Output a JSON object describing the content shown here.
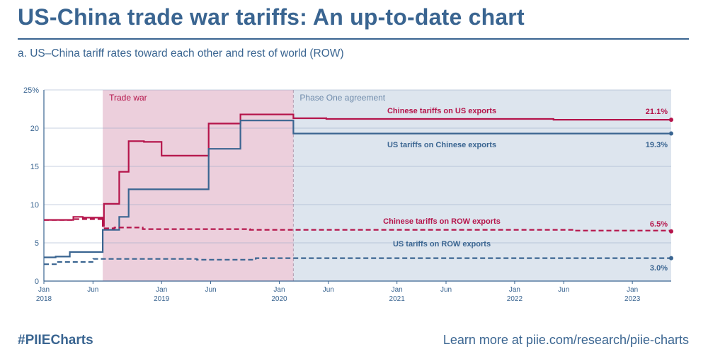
{
  "header": {
    "title": "US-China trade war tariffs: An up-to-date chart",
    "subtitle": "a. US–China tariff rates toward each other and rest of world (ROW)"
  },
  "footer": {
    "hashtag": "#PIIECharts",
    "link_text": "Learn more at piie.com/research/piie-charts"
  },
  "colors": {
    "china": "#b5154b",
    "us": "#3a6591",
    "trade_war_band": "#eccfdc",
    "phase_one_band": "#dde5ee"
  },
  "chart_data": {
    "type": "line",
    "title": "US–China tariff rates toward each other and rest of world (ROW)",
    "xlabel": "",
    "ylabel": "",
    "x_range": [
      2018.0,
      2023.33
    ],
    "ylim": [
      0,
      25
    ],
    "y_ticks": [
      "0",
      "5",
      "10",
      "15",
      "20",
      "25%"
    ],
    "y_tick_values": [
      0,
      5,
      10,
      15,
      20,
      25
    ],
    "grid": true,
    "x_ticks": [
      {
        "x": 2018.0,
        "month": "Jan",
        "year": "2018"
      },
      {
        "x": 2018.417,
        "month": "Jun",
        "year": ""
      },
      {
        "x": 2019.0,
        "month": "Jan",
        "year": "2019"
      },
      {
        "x": 2019.417,
        "month": "Jun",
        "year": ""
      },
      {
        "x": 2020.0,
        "month": "Jan",
        "year": "2020"
      },
      {
        "x": 2020.417,
        "month": "Jun",
        "year": ""
      },
      {
        "x": 2021.0,
        "month": "Jan",
        "year": "2021"
      },
      {
        "x": 2021.417,
        "month": "Jun",
        "year": ""
      },
      {
        "x": 2022.0,
        "month": "Jan",
        "year": "2022"
      },
      {
        "x": 2022.417,
        "month": "Jun",
        "year": ""
      },
      {
        "x": 2023.0,
        "month": "Jan",
        "year": "2023"
      }
    ],
    "bands": [
      {
        "label": "Trade war",
        "start": 2018.5,
        "end": 2020.12
      },
      {
        "label": "Phase One agreement",
        "start": 2020.12,
        "end": 2023.33
      }
    ],
    "series": [
      {
        "name": "Chinese tariffs on US exports",
        "country": "china",
        "dashed": false,
        "end_label": "21.1%",
        "step_points": [
          [
            2018.0,
            8.0
          ],
          [
            2018.25,
            8.4
          ],
          [
            2018.33,
            8.3
          ],
          [
            2018.5,
            7.2
          ],
          [
            2018.51,
            10.1
          ],
          [
            2018.64,
            14.3
          ],
          [
            2018.72,
            18.3
          ],
          [
            2018.85,
            18.2
          ],
          [
            2019.0,
            16.4
          ],
          [
            2019.4,
            20.6
          ],
          [
            2019.67,
            21.8
          ],
          [
            2020.12,
            21.3
          ],
          [
            2020.4,
            21.2
          ],
          [
            2021.0,
            21.2
          ],
          [
            2021.5,
            21.2
          ],
          [
            2022.0,
            21.2
          ],
          [
            2022.33,
            21.1
          ],
          [
            2023.33,
            21.1
          ]
        ]
      },
      {
        "name": "US tariffs on Chinese exports",
        "country": "us",
        "dashed": false,
        "end_label": "19.3%",
        "step_points": [
          [
            2018.0,
            3.1
          ],
          [
            2018.1,
            3.2
          ],
          [
            2018.22,
            3.8
          ],
          [
            2018.5,
            6.7
          ],
          [
            2018.64,
            8.4
          ],
          [
            2018.72,
            12.0
          ],
          [
            2019.4,
            17.3
          ],
          [
            2019.67,
            21.0
          ],
          [
            2020.12,
            19.3
          ],
          [
            2023.33,
            19.3
          ]
        ]
      },
      {
        "name": "Chinese tariffs on ROW exports",
        "country": "china",
        "dashed": true,
        "end_label": "6.5%",
        "step_points": [
          [
            2018.0,
            8.0
          ],
          [
            2018.25,
            8.1
          ],
          [
            2018.5,
            6.9
          ],
          [
            2018.6,
            7.0
          ],
          [
            2018.84,
            6.8
          ],
          [
            2019.75,
            6.7
          ],
          [
            2022.0,
            6.7
          ],
          [
            2022.5,
            6.6
          ],
          [
            2023.33,
            6.5
          ]
        ]
      },
      {
        "name": "US tariffs on ROW exports",
        "country": "us",
        "dashed": true,
        "end_label": "3.0%",
        "step_points": [
          [
            2018.0,
            2.2
          ],
          [
            2018.12,
            2.5
          ],
          [
            2018.42,
            2.9
          ],
          [
            2018.84,
            2.9
          ],
          [
            2019.3,
            2.8
          ],
          [
            2019.8,
            3.0
          ],
          [
            2023.33,
            3.0
          ]
        ]
      }
    ]
  }
}
